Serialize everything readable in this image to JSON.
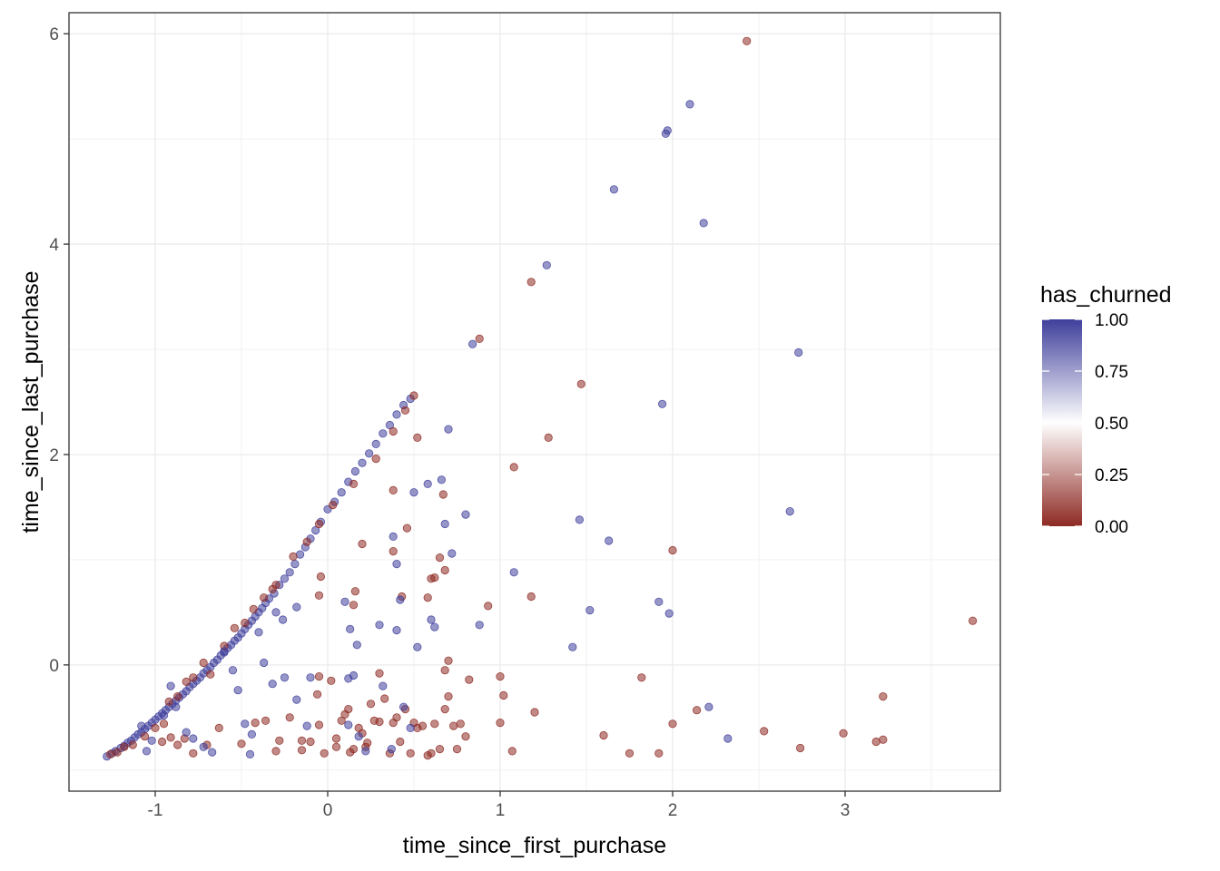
{
  "chart_data": {
    "type": "scatter",
    "xlabel": "time_since_first_purchase",
    "ylabel": "time_since_last_purchase",
    "xlim": [
      -1.5,
      3.9
    ],
    "ylim": [
      -1.2,
      6.2
    ],
    "x_ticks": [
      -1,
      0,
      1,
      2,
      3
    ],
    "y_ticks": [
      0,
      2,
      4,
      6
    ],
    "x_tick_labels": [
      "-1",
      "0",
      "1",
      "2",
      "3"
    ],
    "y_tick_labels": [
      "0",
      "2",
      "4",
      "6"
    ],
    "grid": true,
    "legend": {
      "title": "has_churned",
      "placement": "right",
      "type": "colorbar",
      "breaks": [
        0,
        0.25,
        0.5,
        0.75,
        1
      ],
      "labels": [
        "0.00",
        "0.25",
        "0.50",
        "0.75",
        "1.00"
      ],
      "low_color": "#8e2a23",
      "mid_color": "#ffffff",
      "high_color": "#3f3f9c"
    },
    "point_alpha": 0.55,
    "points": [
      [
        -1.28,
        -0.87,
        1
      ],
      [
        -1.25,
        -0.84,
        1
      ],
      [
        -1.23,
        -0.82,
        1
      ],
      [
        -1.2,
        -0.79,
        1
      ],
      [
        -1.18,
        -0.77,
        1
      ],
      [
        -1.16,
        -0.74,
        1
      ],
      [
        -1.14,
        -0.72,
        1
      ],
      [
        -1.12,
        -0.69,
        1
      ],
      [
        -1.1,
        -0.66,
        1
      ],
      [
        -1.08,
        -0.64,
        1
      ],
      [
        -1.06,
        -0.61,
        1
      ],
      [
        -1.04,
        -0.58,
        1
      ],
      [
        -1.02,
        -0.55,
        1
      ],
      [
        -1.0,
        -0.52,
        1
      ],
      [
        -0.98,
        -0.49,
        1
      ],
      [
        -0.96,
        -0.46,
        1
      ],
      [
        -0.94,
        -0.43,
        1
      ],
      [
        -0.92,
        -0.4,
        1
      ],
      [
        -0.9,
        -0.37,
        1
      ],
      [
        -0.88,
        -0.34,
        1
      ],
      [
        -0.86,
        -0.31,
        1
      ],
      [
        -0.84,
        -0.28,
        1
      ],
      [
        -0.82,
        -0.25,
        1
      ],
      [
        -0.8,
        -0.21,
        1
      ],
      [
        -0.78,
        -0.18,
        1
      ],
      [
        -0.76,
        -0.15,
        1
      ],
      [
        -0.74,
        -0.12,
        1
      ],
      [
        -0.72,
        -0.08,
        1
      ],
      [
        -0.7,
        -0.05,
        1
      ],
      [
        -0.68,
        -0.02,
        1
      ],
      [
        -0.66,
        0.02,
        1
      ],
      [
        -0.64,
        0.05,
        1
      ],
      [
        -0.62,
        0.09,
        1
      ],
      [
        -0.6,
        0.12,
        1
      ],
      [
        -0.58,
        0.16,
        1
      ],
      [
        -0.56,
        0.19,
        1
      ],
      [
        -0.54,
        0.23,
        1
      ],
      [
        -0.52,
        0.26,
        1
      ],
      [
        -0.5,
        0.3,
        1
      ],
      [
        -0.48,
        0.34,
        1
      ],
      [
        -0.46,
        0.38,
        1
      ],
      [
        -0.44,
        0.42,
        1
      ],
      [
        -0.42,
        0.46,
        1
      ],
      [
        -0.4,
        0.5,
        1
      ],
      [
        -0.38,
        0.54,
        1
      ],
      [
        -0.36,
        0.59,
        1
      ],
      [
        -0.34,
        0.63,
        1
      ],
      [
        -0.31,
        0.68,
        1
      ],
      [
        -0.28,
        0.76,
        1
      ],
      [
        -0.25,
        0.82,
        1
      ],
      [
        -0.22,
        0.88,
        1
      ],
      [
        -0.19,
        0.96,
        1
      ],
      [
        -0.16,
        1.05,
        1
      ],
      [
        -0.13,
        1.12,
        1
      ],
      [
        -0.1,
        1.2,
        1
      ],
      [
        -0.07,
        1.28,
        1
      ],
      [
        -0.04,
        1.36,
        1
      ],
      [
        0.0,
        1.48,
        1
      ],
      [
        0.04,
        1.55,
        1
      ],
      [
        0.08,
        1.64,
        1
      ],
      [
        0.12,
        1.74,
        1
      ],
      [
        0.16,
        1.84,
        1
      ],
      [
        0.2,
        1.92,
        1
      ],
      [
        0.24,
        2.01,
        1
      ],
      [
        0.28,
        2.1,
        1
      ],
      [
        0.32,
        2.2,
        1
      ],
      [
        0.36,
        2.28,
        1
      ],
      [
        0.4,
        2.38,
        1
      ],
      [
        0.44,
        2.47,
        1
      ],
      [
        0.48,
        2.53,
        1
      ],
      [
        -1.26,
        -0.85,
        0
      ],
      [
        -1.22,
        -0.83,
        0
      ],
      [
        -1.18,
        -0.78,
        0
      ],
      [
        -1.13,
        -0.76,
        0
      ],
      [
        -1.06,
        -0.68,
        0
      ],
      [
        -1.0,
        -0.6,
        0
      ],
      [
        -0.95,
        -0.56,
        0
      ],
      [
        -0.92,
        -0.35,
        0
      ],
      [
        -0.87,
        -0.3,
        0
      ],
      [
        -0.82,
        -0.16,
        0
      ],
      [
        -0.78,
        -0.12,
        0
      ],
      [
        -0.72,
        0.02,
        0
      ],
      [
        -0.68,
        -0.09,
        0
      ],
      [
        -0.6,
        0.18,
        0
      ],
      [
        -0.54,
        0.35,
        0
      ],
      [
        -0.48,
        0.4,
        0
      ],
      [
        -0.43,
        0.53,
        0
      ],
      [
        -0.37,
        0.64,
        0
      ],
      [
        -0.32,
        0.72,
        0
      ],
      [
        -0.3,
        0.76,
        0
      ],
      [
        -0.2,
        1.03,
        0
      ],
      [
        -0.12,
        1.17,
        0
      ],
      [
        -0.05,
        1.34,
        0
      ],
      [
        0.03,
        1.52,
        0
      ],
      [
        0.15,
        1.72,
        0
      ],
      [
        0.28,
        1.96,
        0
      ],
      [
        0.38,
        2.22,
        0
      ],
      [
        0.45,
        2.42,
        0
      ],
      [
        0.5,
        2.56,
        0
      ],
      [
        -0.96,
        -0.73,
        0
      ],
      [
        -0.91,
        -0.69,
        0
      ],
      [
        -0.87,
        -0.76,
        0
      ],
      [
        -0.83,
        -0.7,
        0
      ],
      [
        -0.78,
        -0.84,
        0
      ],
      [
        -0.7,
        -0.76,
        0
      ],
      [
        -0.63,
        -0.6,
        0
      ],
      [
        -0.5,
        -0.75,
        0
      ],
      [
        -0.42,
        -0.55,
        0
      ],
      [
        -0.36,
        -0.53,
        0
      ],
      [
        -0.3,
        -0.82,
        0
      ],
      [
        -0.28,
        -0.72,
        0
      ],
      [
        -0.22,
        -0.5,
        0
      ],
      [
        -0.15,
        -0.72,
        0
      ],
      [
        -0.15,
        -0.81,
        0
      ],
      [
        -0.1,
        -0.73,
        0
      ],
      [
        -0.05,
        -0.57,
        0
      ],
      [
        -0.02,
        -0.84,
        0
      ],
      [
        -0.05,
        -0.11,
        0
      ],
      [
        0.02,
        -0.15,
        0
      ],
      [
        -0.06,
        -0.28,
        0
      ],
      [
        -0.05,
        0.66,
        0
      ],
      [
        -0.04,
        0.84,
        0
      ],
      [
        0.05,
        -0.7,
        0
      ],
      [
        0.05,
        -0.78,
        0
      ],
      [
        0.08,
        -0.53,
        0
      ],
      [
        0.1,
        -0.47,
        0
      ],
      [
        0.12,
        -0.42,
        0
      ],
      [
        0.13,
        -0.83,
        0
      ],
      [
        0.15,
        -0.8,
        0
      ],
      [
        0.18,
        -0.6,
        0
      ],
      [
        0.2,
        -0.65,
        0
      ],
      [
        0.22,
        -0.78,
        0
      ],
      [
        0.23,
        -0.74,
        0
      ],
      [
        0.25,
        -0.37,
        0
      ],
      [
        0.27,
        -0.53,
        0
      ],
      [
        0.3,
        -0.54,
        0
      ],
      [
        0.3,
        -0.08,
        0
      ],
      [
        0.33,
        -0.32,
        0
      ],
      [
        0.36,
        -0.84,
        0
      ],
      [
        0.38,
        -0.55,
        0
      ],
      [
        0.4,
        -0.5,
        0
      ],
      [
        0.42,
        -0.73,
        0
      ],
      [
        0.45,
        -0.42,
        0
      ],
      [
        0.48,
        -0.84,
        0
      ],
      [
        0.5,
        -0.55,
        0
      ],
      [
        0.52,
        -0.6,
        0
      ],
      [
        0.55,
        -0.58,
        0
      ],
      [
        0.58,
        -0.86,
        0
      ],
      [
        0.6,
        -0.84,
        0
      ],
      [
        0.62,
        -0.56,
        0
      ],
      [
        0.65,
        -0.8,
        0
      ],
      [
        0.68,
        -0.42,
        0
      ],
      [
        0.7,
        -0.3,
        0
      ],
      [
        0.73,
        -0.58,
        0
      ],
      [
        0.75,
        -0.8,
        0
      ],
      [
        0.77,
        -0.56,
        0
      ],
      [
        0.8,
        -0.68,
        0
      ],
      [
        0.82,
        -0.14,
        0
      ],
      [
        0.15,
        0.57,
        0
      ],
      [
        0.16,
        0.7,
        0
      ],
      [
        0.2,
        1.15,
        0
      ],
      [
        0.38,
        1.08,
        0
      ],
      [
        0.38,
        1.66,
        0
      ],
      [
        0.43,
        0.65,
        0
      ],
      [
        0.46,
        1.3,
        0
      ],
      [
        0.52,
        2.16,
        0
      ],
      [
        0.6,
        0.82,
        0
      ],
      [
        0.62,
        0.83,
        0
      ],
      [
        0.65,
        1.02,
        0
      ],
      [
        0.67,
        1.62,
        0
      ],
      [
        0.68,
        0.9,
        0
      ],
      [
        0.58,
        0.64,
        0
      ],
      [
        0.68,
        -0.05,
        0
      ],
      [
        0.7,
        0.04,
        0
      ],
      [
        0.88,
        3.1,
        0
      ],
      [
        0.93,
        0.56,
        0
      ],
      [
        1.0,
        -0.11,
        0
      ],
      [
        1.0,
        -0.55,
        0
      ],
      [
        1.02,
        -0.29,
        0
      ],
      [
        1.07,
        -0.82,
        0
      ],
      [
        1.08,
        1.88,
        0
      ],
      [
        1.18,
        0.65,
        0
      ],
      [
        1.2,
        -0.45,
        0
      ],
      [
        1.18,
        3.64,
        0
      ],
      [
        1.28,
        2.16,
        0
      ],
      [
        1.47,
        2.67,
        0
      ],
      [
        1.6,
        -0.67,
        0
      ],
      [
        1.75,
        -0.84,
        0
      ],
      [
        1.82,
        -0.12,
        0
      ],
      [
        1.92,
        -0.84,
        0
      ],
      [
        2.0,
        1.09,
        0
      ],
      [
        2.0,
        -0.56,
        0
      ],
      [
        2.14,
        -0.43,
        0
      ],
      [
        2.43,
        5.93,
        0
      ],
      [
        2.53,
        -0.63,
        0
      ],
      [
        2.74,
        -0.79,
        0
      ],
      [
        2.99,
        -0.65,
        0
      ],
      [
        3.18,
        -0.73,
        0
      ],
      [
        3.22,
        -0.71,
        0
      ],
      [
        3.22,
        -0.3,
        0
      ],
      [
        3.74,
        0.42,
        0
      ],
      [
        -1.08,
        -0.58,
        1
      ],
      [
        -1.05,
        -0.82,
        1
      ],
      [
        -1.02,
        -0.72,
        1
      ],
      [
        -0.95,
        -0.48,
        1
      ],
      [
        -0.91,
        -0.2,
        1
      ],
      [
        -0.88,
        -0.4,
        1
      ],
      [
        -0.82,
        -0.64,
        1
      ],
      [
        -0.78,
        -0.7,
        1
      ],
      [
        -0.72,
        -0.78,
        1
      ],
      [
        -0.67,
        -0.83,
        1
      ],
      [
        -0.6,
        0.13,
        1
      ],
      [
        -0.55,
        -0.05,
        1
      ],
      [
        -0.52,
        -0.24,
        1
      ],
      [
        -0.48,
        -0.56,
        1
      ],
      [
        -0.45,
        -0.85,
        1
      ],
      [
        -0.44,
        -0.66,
        1
      ],
      [
        -0.4,
        0.31,
        1
      ],
      [
        -0.37,
        0.02,
        1
      ],
      [
        -0.32,
        -0.18,
        1
      ],
      [
        -0.3,
        0.5,
        1
      ],
      [
        -0.26,
        0.43,
        1
      ],
      [
        -0.25,
        -0.12,
        1
      ],
      [
        -0.18,
        -0.33,
        1
      ],
      [
        -0.18,
        0.55,
        1
      ],
      [
        -0.12,
        -0.58,
        1
      ],
      [
        -0.1,
        -0.12,
        1
      ],
      [
        0.1,
        0.6,
        1
      ],
      [
        0.12,
        -0.57,
        1
      ],
      [
        0.12,
        -0.13,
        1
      ],
      [
        0.13,
        0.34,
        1
      ],
      [
        0.15,
        -0.1,
        1
      ],
      [
        0.17,
        0.19,
        1
      ],
      [
        0.18,
        -0.68,
        1
      ],
      [
        0.22,
        -0.82,
        1
      ],
      [
        0.3,
        0.38,
        1
      ],
      [
        0.32,
        -0.2,
        1
      ],
      [
        0.37,
        -0.8,
        1
      ],
      [
        0.38,
        1.22,
        1
      ],
      [
        0.4,
        0.96,
        1
      ],
      [
        0.4,
        0.33,
        1
      ],
      [
        0.42,
        0.62,
        1
      ],
      [
        0.44,
        -0.4,
        1
      ],
      [
        0.48,
        -0.6,
        1
      ],
      [
        0.5,
        1.64,
        1
      ],
      [
        0.52,
        0.17,
        1
      ],
      [
        0.58,
        1.72,
        1
      ],
      [
        0.6,
        0.43,
        1
      ],
      [
        0.62,
        0.36,
        1
      ],
      [
        0.66,
        1.76,
        1
      ],
      [
        0.68,
        1.34,
        1
      ],
      [
        0.7,
        2.24,
        1
      ],
      [
        0.72,
        1.06,
        1
      ],
      [
        0.8,
        1.43,
        1
      ],
      [
        0.84,
        3.05,
        1
      ],
      [
        0.88,
        0.38,
        1
      ],
      [
        1.08,
        0.88,
        1
      ],
      [
        1.27,
        3.8,
        1
      ],
      [
        1.42,
        0.17,
        1
      ],
      [
        1.46,
        1.38,
        1
      ],
      [
        1.52,
        0.52,
        1
      ],
      [
        1.63,
        1.18,
        1
      ],
      [
        1.66,
        4.52,
        1
      ],
      [
        1.92,
        0.6,
        1
      ],
      [
        1.94,
        2.48,
        1
      ],
      [
        1.96,
        5.05,
        1
      ],
      [
        1.97,
        5.08,
        1
      ],
      [
        1.98,
        0.49,
        1
      ],
      [
        2.1,
        5.33,
        1
      ],
      [
        2.18,
        4.2,
        1
      ],
      [
        2.21,
        -0.4,
        1
      ],
      [
        2.32,
        -0.7,
        1
      ],
      [
        2.68,
        1.46,
        1
      ],
      [
        2.73,
        2.97,
        1
      ]
    ]
  }
}
